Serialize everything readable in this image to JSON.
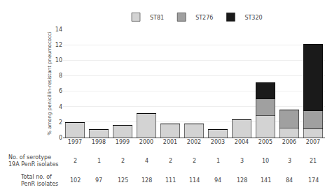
{
  "chart_data": {
    "type": "bar",
    "stacked": true,
    "categories": [
      "1997",
      "1998",
      "1999",
      "2000",
      "2001",
      "2002",
      "2003",
      "2004",
      "2005",
      "2006",
      "2007"
    ],
    "series": [
      {
        "name": "ST81",
        "color": "#d3d3d3",
        "values": [
          1.96,
          1.03,
          1.6,
          3.13,
          1.8,
          1.75,
          1.06,
          2.34,
          2.84,
          1.19,
          1.15
        ]
      },
      {
        "name": "ST276",
        "color": "#a0a0a0",
        "values": [
          0.0,
          0.0,
          0.0,
          0.0,
          0.0,
          0.0,
          0.0,
          0.0,
          2.13,
          2.38,
          2.3
        ]
      },
      {
        "name": "ST320",
        "color": "#1a1a1a",
        "values": [
          0.0,
          0.0,
          0.0,
          0.0,
          0.0,
          0.0,
          0.0,
          0.0,
          2.13,
          0.0,
          8.62
        ]
      }
    ],
    "y_label": "% among penicillin-resistant pneumococci",
    "ylim": [
      0,
      14
    ],
    "yticks": [
      0,
      2,
      4,
      6,
      8,
      10,
      12,
      14
    ],
    "grid": true,
    "legend": "top",
    "table": [
      {
        "label": "No. of serotype\n19A PenR isolates",
        "values": [
          2,
          1,
          2,
          4,
          2,
          2,
          1,
          3,
          10,
          3,
          21
        ]
      },
      {
        "label": "Total no. of\nPenR isolates",
        "values": [
          102,
          97,
          125,
          128,
          111,
          114,
          94,
          128,
          141,
          84,
          174
        ]
      }
    ]
  }
}
